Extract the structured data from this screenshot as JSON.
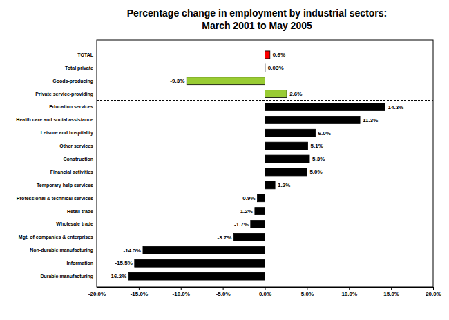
{
  "chart_data": {
    "type": "bar",
    "orientation": "horizontal",
    "title": "Percentage change in employment by industrial sectors:",
    "subtitle": "March 2001 to May 2005",
    "categories": [
      "TOTAL",
      "Total private",
      "Goods-producing",
      "Private service-providing",
      "Education services",
      "Health care and social assistance",
      "Leisure and hospitality",
      "Other services",
      "Construction",
      "Financial activities",
      "Temporary help services",
      "Professional & technical services",
      "Retail trade",
      "Wholesale trade",
      "Mgt. of companies & enterprises",
      "Non-durable manufacturing",
      "Information",
      "Durable manufacturing"
    ],
    "values": [
      0.6,
      0.03,
      -9.3,
      2.6,
      14.3,
      11.3,
      6.0,
      5.1,
      5.3,
      5.0,
      1.2,
      -0.9,
      -1.2,
      -1.7,
      -3.7,
      -14.5,
      -15.5,
      -16.2
    ],
    "value_labels": [
      "0.6%",
      "0.03%",
      "-9.3%",
      "2.6%",
      "14.3%",
      "11.3%",
      "6.0%",
      "5.1%",
      "5.3%",
      "5.0%",
      "1.2%",
      "-0.9%",
      "-1.2%",
      "-1.7%",
      "-3.7%",
      "-14.5%",
      "-15.5%",
      "-16.2%"
    ],
    "colors": [
      "#ff0000",
      "#000000",
      "#99cc33",
      "#99cc33",
      "#000000",
      "#000000",
      "#000000",
      "#000000",
      "#000000",
      "#000000",
      "#000000",
      "#000000",
      "#000000",
      "#000000",
      "#000000",
      "#000000",
      "#000000",
      "#000000"
    ],
    "data_labels": true,
    "grid": false,
    "xlim": [
      -20,
      20
    ],
    "xticks": [
      {
        "value": -20,
        "label": "-20.0%"
      },
      {
        "value": -15,
        "label": "-15.0%"
      },
      {
        "value": -10,
        "label": "-10.0%"
      },
      {
        "value": -5,
        "label": "-5.0%"
      },
      {
        "value": 0,
        "label": "0.0%"
      },
      {
        "value": 5,
        "label": "5.0%"
      },
      {
        "value": 10,
        "label": "10.0%"
      },
      {
        "value": 15,
        "label": "15.0%"
      },
      {
        "value": 20,
        "label": "20.0%"
      }
    ]
  }
}
